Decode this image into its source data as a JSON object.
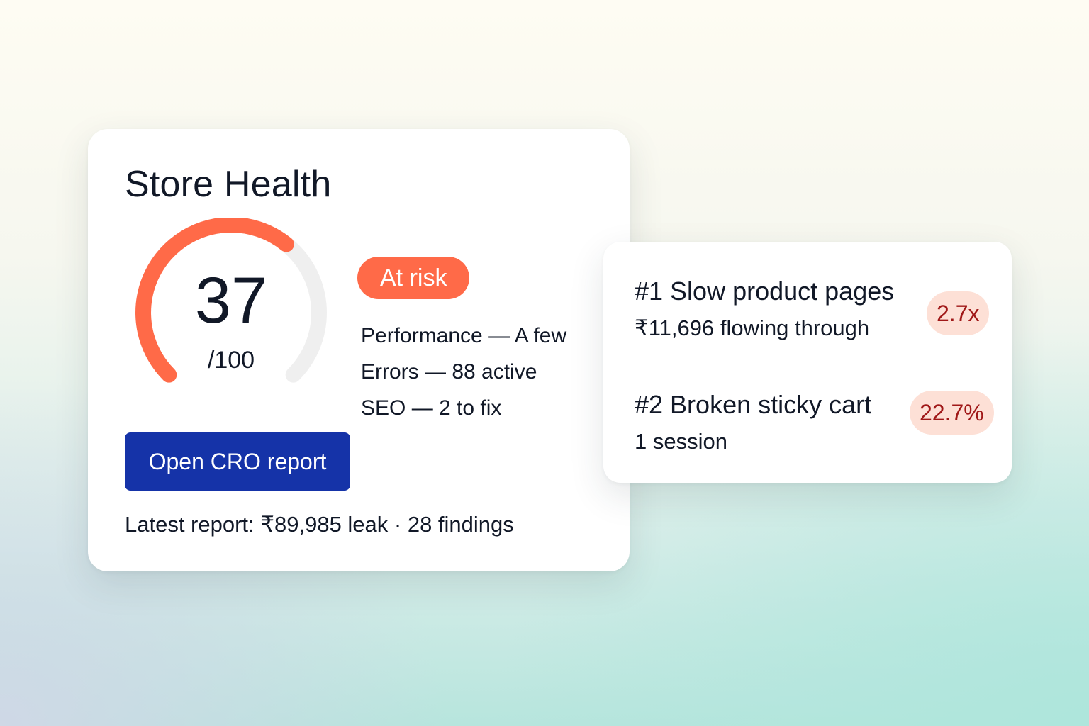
{
  "health_card": {
    "title": "Store Health",
    "score": "37",
    "score_max": "/100",
    "score_fraction": 0.37,
    "status": "At risk",
    "metrics": [
      "Performance — A few",
      "Errors — 88 active",
      "SEO — 2 to fix"
    ],
    "cta_label": "Open CRO report",
    "footer": "Latest report: ₹89,985 leak · 28 findings"
  },
  "issues": [
    {
      "title": "#1 Slow product pages",
      "subtitle": "₹11,696 flowing through",
      "impact": "2.7x"
    },
    {
      "title": "#2 Broken sticky cart",
      "subtitle": "1 session",
      "impact": "22.7%"
    }
  ],
  "colors": {
    "accent": "#ff6a48",
    "gauge_track": "#efefef",
    "primary_button": "#1533a8",
    "impact_bg": "#fde0d6",
    "impact_text": "#a01818"
  }
}
